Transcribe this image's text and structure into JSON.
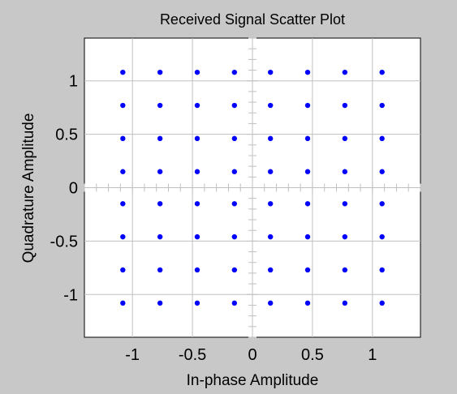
{
  "chart_data": {
    "type": "scatter",
    "title": "Received Signal Scatter Plot",
    "xlabel": "In-phase Amplitude",
    "ylabel": "Quadrature Amplitude",
    "xlim": [
      -1.4,
      1.4
    ],
    "ylim": [
      -1.4,
      1.4
    ],
    "xticks": [
      -1,
      -0.5,
      0,
      0.5,
      1
    ],
    "yticks": [
      -1,
      -0.5,
      0,
      0.5,
      1
    ],
    "xtick_labels": [
      "-1",
      "-0.5",
      "0",
      "0.5",
      "1"
    ],
    "ytick_labels": [
      "-1",
      "-0.5",
      "0",
      "0.5",
      "1"
    ],
    "grid": true,
    "colors": {
      "figure_background": "#c8c8c8",
      "axes_background": "#ffffff",
      "grid": "#c0c0c0",
      "marker": "#0000ff"
    },
    "constellation_levels": [
      -1.08,
      -0.77,
      -0.46,
      -0.15,
      0.15,
      0.46,
      0.77,
      1.08
    ]
  }
}
